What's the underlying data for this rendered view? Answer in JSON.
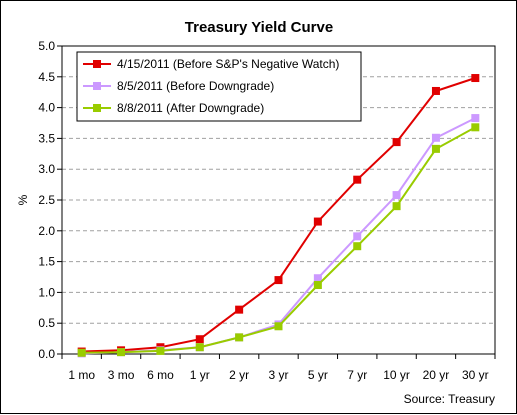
{
  "chart_data": {
    "type": "line",
    "title": "Treasury Yield Curve",
    "xlabel": "",
    "ylabel": "%",
    "ylim": [
      0,
      5
    ],
    "yticks": [
      "0.0",
      "0.5",
      "1.0",
      "1.5",
      "2.0",
      "2.5",
      "3.0",
      "3.5",
      "4.0",
      "4.5",
      "5.0"
    ],
    "categories": [
      "1 mo",
      "3 mo",
      "6 mo",
      "1 yr",
      "2 yr",
      "3 yr",
      "5 yr",
      "7 yr",
      "10 yr",
      "20 yr",
      "30 yr"
    ],
    "grid": "horizontal dashed",
    "legend_position": "top-left",
    "source": "Source: Treasury",
    "series": [
      {
        "name": "4/15/2011 (Before S&P's Negative Watch)",
        "color": "#e00000",
        "marker": "square",
        "values": [
          0.04,
          0.06,
          0.11,
          0.24,
          0.72,
          1.2,
          2.15,
          2.83,
          3.44,
          4.27,
          4.48
        ]
      },
      {
        "name": "8/5/2011 (Before Downgrade)",
        "color": "#cc99ff",
        "marker": "square",
        "values": [
          0.01,
          0.03,
          0.06,
          0.11,
          0.27,
          0.48,
          1.23,
          1.91,
          2.58,
          3.51,
          3.83
        ]
      },
      {
        "name": "8/8/2011 (After Downgrade)",
        "color": "#99cc00",
        "marker": "square",
        "values": [
          0.02,
          0.03,
          0.05,
          0.11,
          0.27,
          0.45,
          1.12,
          1.75,
          2.4,
          3.33,
          3.68
        ]
      }
    ]
  }
}
